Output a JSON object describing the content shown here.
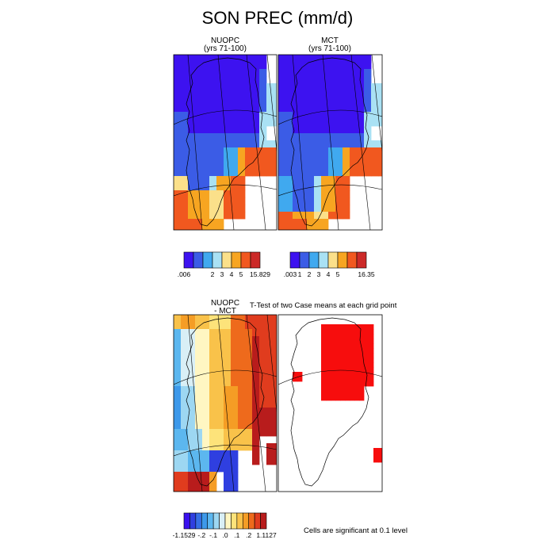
{
  "title": "SON PREC (mm/d)",
  "panels": {
    "nuopc": {
      "title": "NUOPC",
      "subtitle": "(yrs 71-100)"
    },
    "mct": {
      "title": "MCT",
      "subtitle": "(yrs 71-100)"
    },
    "diff": {
      "title": "NUOPC",
      "subtitle": "- MCT"
    },
    "ttest": {
      "title": "T-Test of two Case means at each grid point"
    }
  },
  "significance_note": "Cells are significant at 0.1 level",
  "chart_data": [
    {
      "type": "heatmap",
      "title": "NUOPC (yrs 71-100)",
      "colorbar": {
        "tick_labels": [
          ".006",
          "2",
          "3",
          "4",
          "5",
          "15.829"
        ],
        "colors": [
          "#3d12f0",
          "#3b5ce6",
          "#40a9ef",
          "#a9e1f4",
          "#fbe08a",
          "#f7a521",
          "#f1581f",
          "#cc2a28"
        ]
      }
    },
    {
      "type": "heatmap",
      "title": "MCT (yrs 71-100)",
      "colorbar": {
        "tick_labels": [
          ".003",
          "1",
          "2",
          "3",
          "4",
          "5",
          "16.35"
        ],
        "colors": [
          "#3d12f0",
          "#3b5ce6",
          "#40a9ef",
          "#a9e1f4",
          "#fbe08a",
          "#f7a521",
          "#f1581f",
          "#cc2a28"
        ]
      }
    },
    {
      "type": "heatmap",
      "title": "NUOPC - MCT",
      "colorbar": {
        "tick_labels": [
          "-1.1529",
          "-.2",
          "-.1",
          ".0",
          ".1",
          ".2",
          "1.1127"
        ],
        "colors": [
          "#3a10ee",
          "#2f3fe0",
          "#356fe6",
          "#3d99ea",
          "#5cb7ef",
          "#9dd7f2",
          "#d9eff6",
          "#fff6c2",
          "#fde37a",
          "#f9c24a",
          "#f59d25",
          "#ee6a1c",
          "#e03c1e",
          "#b81c1c"
        ]
      }
    },
    {
      "type": "heatmap",
      "title": "T-Test of two Case means at each grid point",
      "significant_color": "#f70d0d"
    }
  ]
}
